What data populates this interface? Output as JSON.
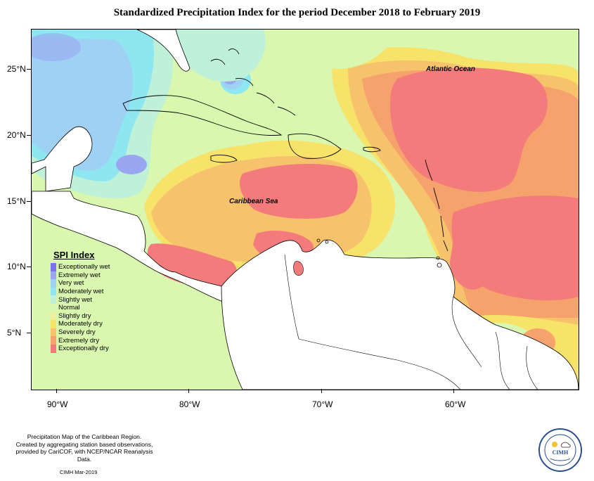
{
  "title": "Standardized Precipitation Index for the period December 2018 to February 2019",
  "latitude_labels": [
    "25°N",
    "20°N",
    "15°N",
    "10°N",
    "5°N"
  ],
  "longitude_labels": [
    "90°W",
    "80°W",
    "70°W",
    "60°W"
  ],
  "map_labels": {
    "atlantic": "Atlantic Ocean",
    "caribbean": "Caribbean Sea"
  },
  "legend": {
    "title": "SPI Index",
    "items": [
      {
        "label": "Exceptionally wet",
        "color": "#7b72ee"
      },
      {
        "label": "Extremely wet",
        "color": "#9aa6f0"
      },
      {
        "label": "Very wet",
        "color": "#9fd1f5"
      },
      {
        "label": "Moderately wet",
        "color": "#8de6f0"
      },
      {
        "label": "Slightly wet",
        "color": "#bff0d8"
      },
      {
        "label": "Normal",
        "color": "#d9f7ae"
      },
      {
        "label": "Slightly dry",
        "color": "#eff29a"
      },
      {
        "label": "Moderately dry",
        "color": "#f7e26a"
      },
      {
        "label": "Severely dry",
        "color": "#f7c26c"
      },
      {
        "label": "Extremely dry",
        "color": "#f5a26c"
      },
      {
        "label": "Exceptionally dry",
        "color": "#f47b7b"
      }
    ]
  },
  "footer": {
    "line1": "Precipitation Map of the Caribbean Region.",
    "line2": "Created by aggregating station based observations,",
    "line3": "provided by CariCOF, with NCEP/NCAR Reanalysis Data.",
    "date": "CIMH Mar-2019"
  },
  "logo": {
    "text": "CIMH"
  }
}
